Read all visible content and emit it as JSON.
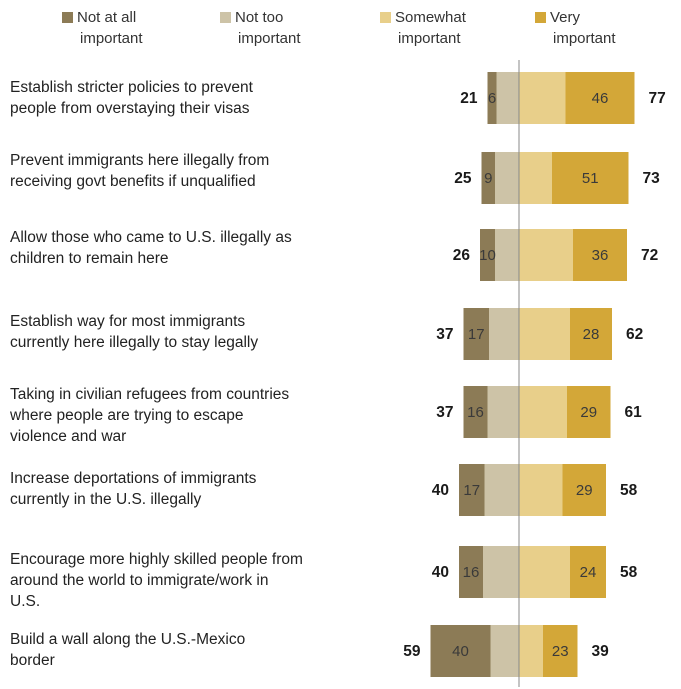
{
  "chart_data": {
    "type": "bar",
    "orientation": "horizontal-diverging",
    "title": "",
    "legend": [
      "Not at all important",
      "Not too important",
      "Somewhat important",
      "Very important"
    ],
    "legend_lines": [
      [
        "Not at all",
        "important"
      ],
      [
        "Not too",
        "important"
      ],
      [
        "Somewhat",
        "important"
      ],
      [
        "Very",
        "important"
      ]
    ],
    "colors": {
      "not_at_all": "#8c7b56",
      "not_too": "#cdc3a7",
      "somewhat": "#e8cf8a",
      "very": "#d3a738",
      "axis": "#888888"
    },
    "categories": [
      "Establish stricter policies to prevent people from overstaying their visas",
      "Prevent immigrants here illegally from receiving govt benefits if unqualified",
      "Allow those who came to U.S. illegally as children to remain here",
      "Establish way for most immigrants currently here illegally to stay legally",
      "Taking in civilian refugees from countries where people are trying to escape violence and war",
      "Increase deportations of immigrants currently in the U.S. illegally",
      "Encourage more highly skilled people from around the world to immigrate/work in U.S.",
      "Build a wall along the U.S.-Mexico border"
    ],
    "category_lines": [
      [
        "Establish stricter policies to prevent",
        "people from overstaying their visas"
      ],
      [
        "Prevent immigrants here illegally from",
        "receiving govt benefits if unqualified"
      ],
      [
        "Allow those who came to U.S. illegally as",
        "children to remain here"
      ],
      [
        "Establish way for most immigrants",
        "currently here illegally to stay legally"
      ],
      [
        "Taking in civilian refugees from countries",
        "where people are trying to escape",
        "violence and war"
      ],
      [
        "Increase deportations of immigrants",
        "currently in the U.S. illegally"
      ],
      [
        "Encourage more highly skilled people from",
        "around the world to immigrate/work in",
        "U.S."
      ],
      [
        "Build a wall along the U.S.-Mexico",
        "border"
      ]
    ],
    "series": [
      {
        "key": "not_at_all",
        "values": [
          6,
          9,
          10,
          17,
          16,
          17,
          16,
          40
        ]
      },
      {
        "key": "not_too",
        "values": [
          15,
          16,
          16,
          20,
          21,
          23,
          24,
          19
        ]
      },
      {
        "key": "somewhat",
        "values": [
          31,
          22,
          36,
          34,
          32,
          29,
          34,
          16
        ]
      },
      {
        "key": "very",
        "values": [
          46,
          51,
          36,
          28,
          29,
          29,
          24,
          23
        ]
      }
    ],
    "totals_unimportant": [
      21,
      25,
      26,
      37,
      37,
      40,
      40,
      59
    ],
    "totals_important": [
      77,
      73,
      72,
      62,
      61,
      58,
      58,
      39
    ]
  }
}
